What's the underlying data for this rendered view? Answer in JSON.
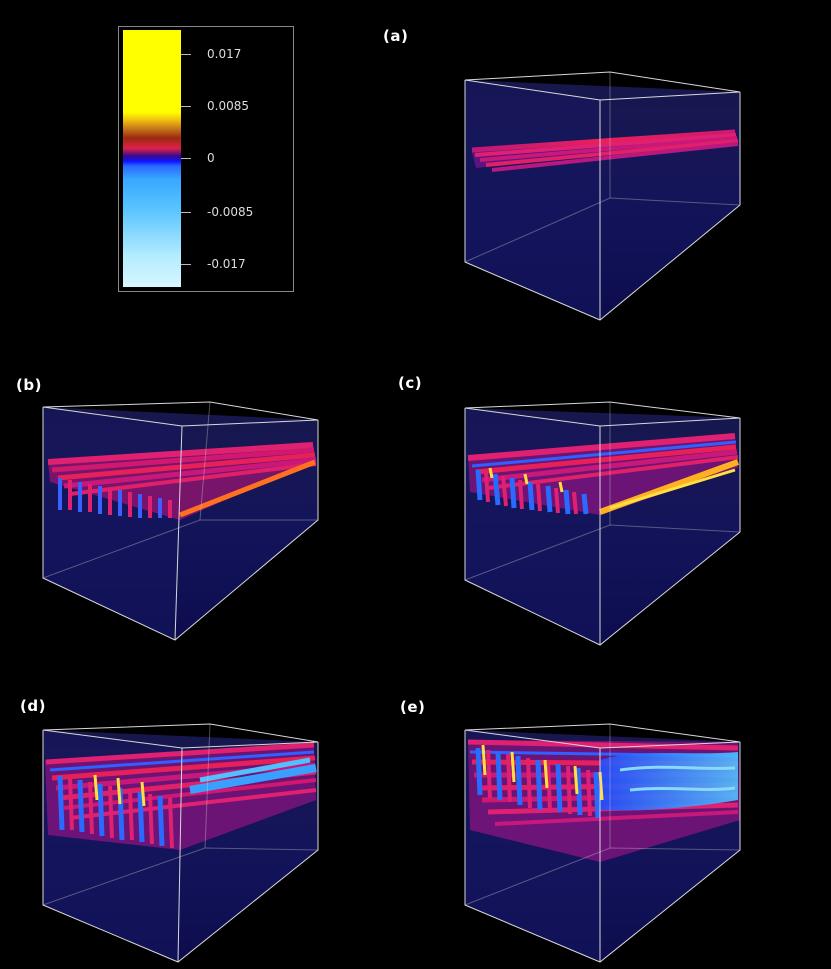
{
  "colorbar": {
    "ticks": [
      "0.017",
      "0.0085",
      "0",
      "-0.0085",
      "-0.017"
    ]
  },
  "panels": [
    {
      "label": "(a)"
    },
    {
      "label": "(b)"
    },
    {
      "label": "(c)"
    },
    {
      "label": "(d)"
    },
    {
      "label": "(e)"
    }
  ],
  "colors": {
    "background": "#000000",
    "volume": "#1a1a6e",
    "streak_red": "#e0206a",
    "streak_blue": "#3aa0ff",
    "streak_yellow": "#ffe040",
    "box_edge": "#d8d8d8"
  }
}
